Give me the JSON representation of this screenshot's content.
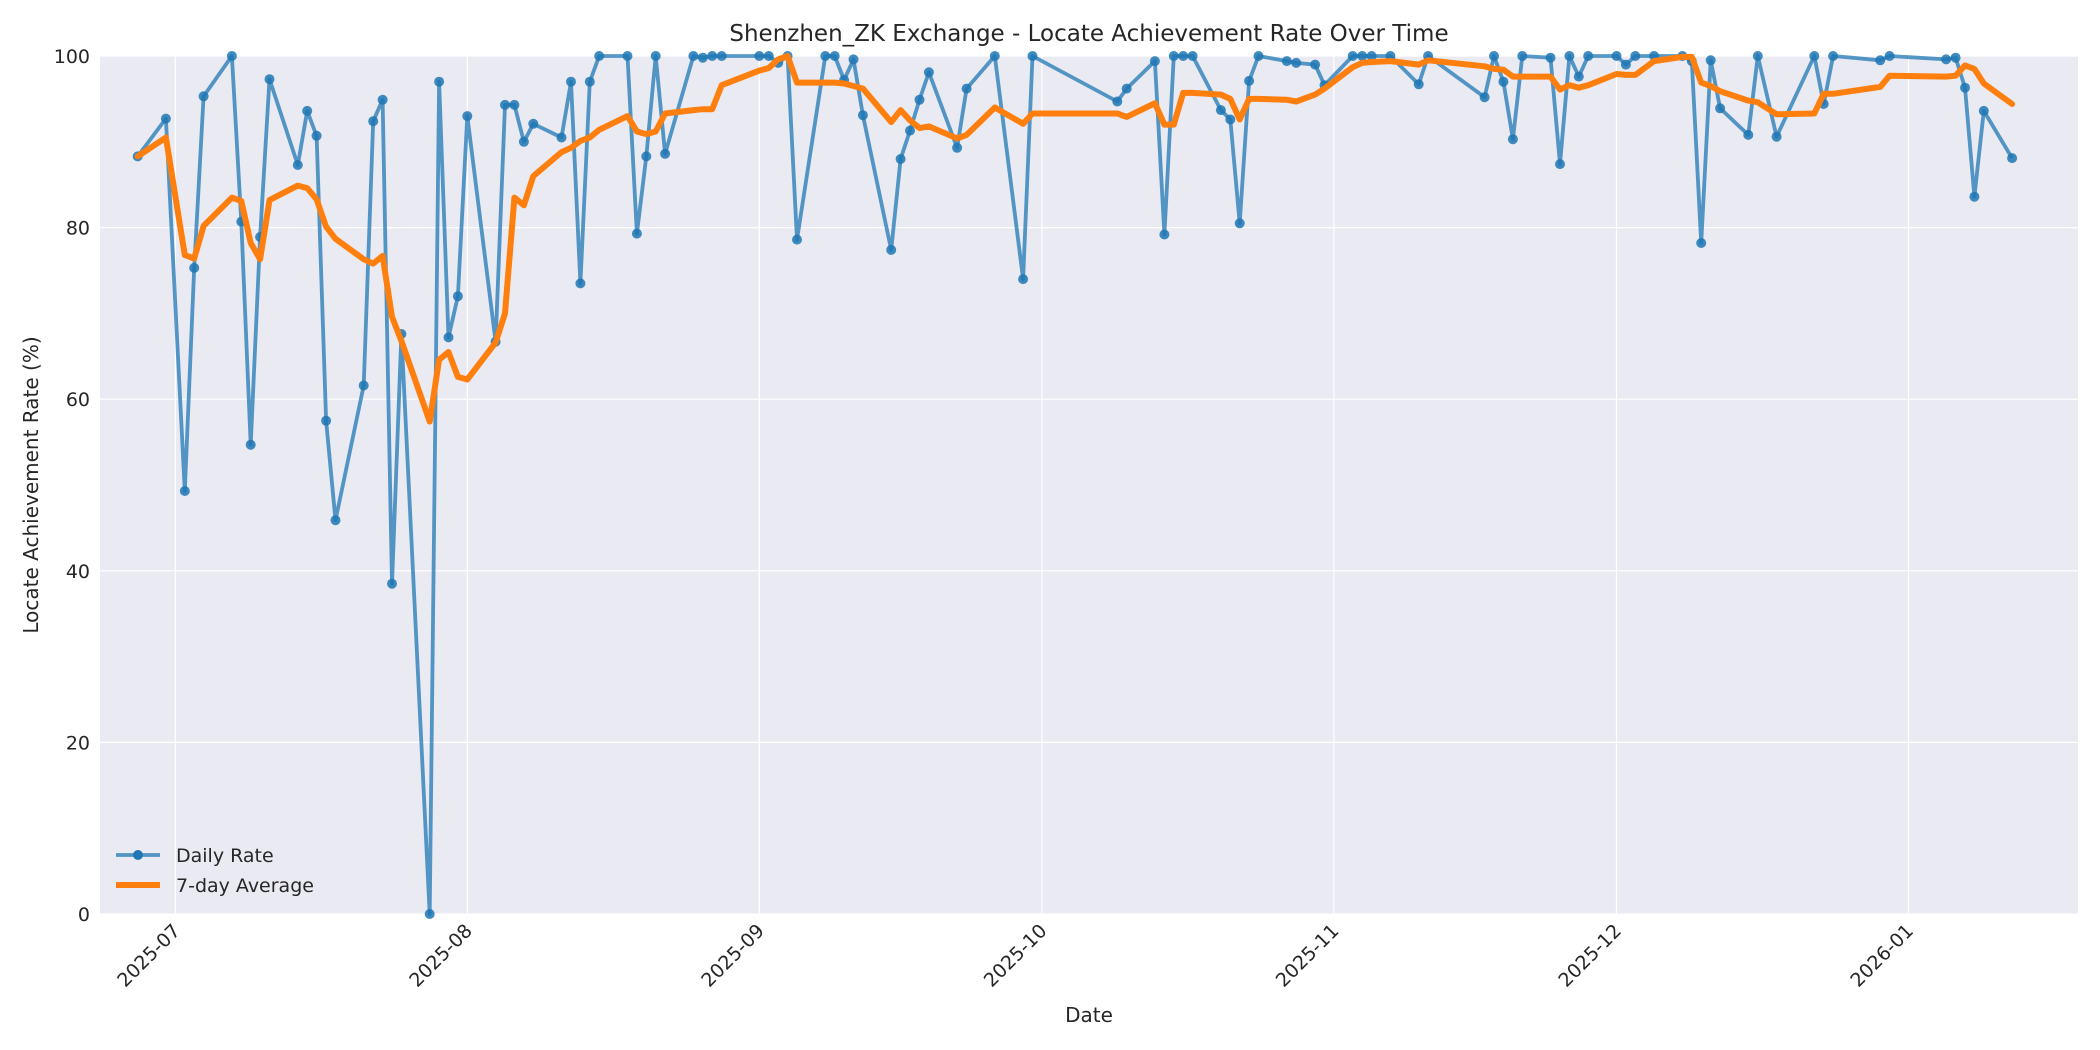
{
  "chart_data": {
    "type": "line",
    "title": "Shenzhen_ZK Exchange - Locate Achievement Rate Over Time",
    "xlabel": "Date",
    "ylabel": "Locate Achievement Rate (%)",
    "xlim": [
      "2025-06-23",
      "2026-01-19"
    ],
    "ylim": [
      0,
      100
    ],
    "x_ticks": [
      "2025-07",
      "2025-08",
      "2025-09",
      "2025-10",
      "2025-11",
      "2025-12",
      "2026-01"
    ],
    "y_ticks": [
      0,
      20,
      40,
      60,
      80,
      100
    ],
    "grid": true,
    "legend": "lower-left",
    "colors": {
      "daily": "#1f77b4",
      "average": "#ff7f0e",
      "plot_bg": "#eaeaf2",
      "grid": "#ffffff"
    },
    "series": [
      {
        "name": "Daily Rate",
        "marker": "circle",
        "points": [
          [
            "2025-06-27",
            88.3
          ],
          [
            "2025-06-30",
            92.7
          ],
          [
            "2025-07-02",
            49.3
          ],
          [
            "2025-07-03",
            75.3
          ],
          [
            "2025-07-04",
            95.3
          ],
          [
            "2025-07-07",
            100.0
          ],
          [
            "2025-07-08",
            80.7
          ],
          [
            "2025-07-09",
            54.7
          ],
          [
            "2025-07-10",
            78.9
          ],
          [
            "2025-07-11",
            97.3
          ],
          [
            "2025-07-14",
            87.3
          ],
          [
            "2025-07-15",
            93.6
          ],
          [
            "2025-07-16",
            90.7
          ],
          [
            "2025-07-17",
            57.5
          ],
          [
            "2025-07-18",
            45.9
          ],
          [
            "2025-07-21",
            61.6
          ],
          [
            "2025-07-22",
            92.4
          ],
          [
            "2025-07-23",
            94.9
          ],
          [
            "2025-07-24",
            38.5
          ],
          [
            "2025-07-25",
            67.6
          ],
          [
            "2025-07-28",
            0.0
          ],
          [
            "2025-07-29",
            97.0
          ],
          [
            "2025-07-30",
            67.2
          ],
          [
            "2025-07-31",
            72.0
          ],
          [
            "2025-08-01",
            93.0
          ],
          [
            "2025-08-04",
            66.7
          ],
          [
            "2025-08-05",
            94.3
          ],
          [
            "2025-08-06",
            94.3
          ],
          [
            "2025-08-07",
            90.0
          ],
          [
            "2025-08-08",
            92.1
          ],
          [
            "2025-08-11",
            90.5
          ],
          [
            "2025-08-12",
            97.0
          ],
          [
            "2025-08-13",
            73.5
          ],
          [
            "2025-08-14",
            97.0
          ],
          [
            "2025-08-15",
            100.0
          ],
          [
            "2025-08-18",
            100.0
          ],
          [
            "2025-08-19",
            79.3
          ],
          [
            "2025-08-20",
            88.3
          ],
          [
            "2025-08-21",
            100.0
          ],
          [
            "2025-08-22",
            88.6
          ],
          [
            "2025-08-25",
            100.0
          ],
          [
            "2025-08-26",
            99.8
          ],
          [
            "2025-08-27",
            100.0
          ],
          [
            "2025-08-28",
            100.0
          ],
          [
            "2025-09-01",
            100.0
          ],
          [
            "2025-09-02",
            100.0
          ],
          [
            "2025-09-03",
            99.2
          ],
          [
            "2025-09-04",
            100.0
          ],
          [
            "2025-09-05",
            78.6
          ],
          [
            "2025-09-08",
            100.0
          ],
          [
            "2025-09-09",
            100.0
          ],
          [
            "2025-09-10",
            97.2
          ],
          [
            "2025-09-11",
            99.6
          ],
          [
            "2025-09-12",
            93.1
          ],
          [
            "2025-09-15",
            77.4
          ],
          [
            "2025-09-16",
            88.0
          ],
          [
            "2025-09-17",
            91.3
          ],
          [
            "2025-09-18",
            94.9
          ],
          [
            "2025-09-19",
            98.1
          ],
          [
            "2025-09-22",
            89.3
          ],
          [
            "2025-09-23",
            96.2
          ],
          [
            "2025-09-26",
            100.0
          ],
          [
            "2025-09-29",
            74.0
          ],
          [
            "2025-09-30",
            100.0
          ],
          [
            "2025-10-09",
            94.7
          ],
          [
            "2025-10-10",
            96.2
          ],
          [
            "2025-10-13",
            99.4
          ],
          [
            "2025-10-14",
            79.2
          ],
          [
            "2025-10-15",
            100.0
          ],
          [
            "2025-10-16",
            100.0
          ],
          [
            "2025-10-17",
            100.0
          ],
          [
            "2025-10-20",
            93.7
          ],
          [
            "2025-10-21",
            92.6
          ],
          [
            "2025-10-22",
            80.5
          ],
          [
            "2025-10-23",
            97.1
          ],
          [
            "2025-10-24",
            100.0
          ],
          [
            "2025-10-27",
            99.4
          ],
          [
            "2025-10-28",
            99.2
          ],
          [
            "2025-10-30",
            99.0
          ],
          [
            "2025-10-31",
            96.6
          ],
          [
            "2025-11-03",
            100.0
          ],
          [
            "2025-11-04",
            100.0
          ],
          [
            "2025-11-05",
            100.0
          ],
          [
            "2025-11-07",
            100.0
          ],
          [
            "2025-11-10",
            96.7
          ],
          [
            "2025-11-11",
            100.0
          ],
          [
            "2025-11-17",
            95.2
          ],
          [
            "2025-11-18",
            100.0
          ],
          [
            "2025-11-19",
            97.0
          ],
          [
            "2025-11-20",
            90.3
          ],
          [
            "2025-11-21",
            100.0
          ],
          [
            "2025-11-24",
            99.8
          ],
          [
            "2025-11-25",
            87.4
          ],
          [
            "2025-11-26",
            100.0
          ],
          [
            "2025-11-27",
            97.6
          ],
          [
            "2025-11-28",
            100.0
          ],
          [
            "2025-12-01",
            100.0
          ],
          [
            "2025-12-02",
            99.0
          ],
          [
            "2025-12-03",
            100.0
          ],
          [
            "2025-12-05",
            100.0
          ],
          [
            "2025-12-08",
            100.0
          ],
          [
            "2025-12-09",
            99.4
          ],
          [
            "2025-12-10",
            78.2
          ],
          [
            "2025-12-11",
            99.5
          ],
          [
            "2025-12-12",
            93.9
          ],
          [
            "2025-12-15",
            90.8
          ],
          [
            "2025-12-16",
            100.0
          ],
          [
            "2025-12-18",
            90.6
          ],
          [
            "2025-12-22",
            100.0
          ],
          [
            "2025-12-23",
            94.4
          ],
          [
            "2025-12-24",
            100.0
          ],
          [
            "2025-12-29",
            99.5
          ],
          [
            "2025-12-30",
            100.0
          ],
          [
            "2026-01-05",
            99.6
          ],
          [
            "2026-01-06",
            99.8
          ],
          [
            "2026-01-07",
            96.3
          ],
          [
            "2026-01-08",
            83.6
          ],
          [
            "2026-01-09",
            93.6
          ],
          [
            "2026-01-12",
            88.1
          ]
        ]
      },
      {
        "name": "7-day Average",
        "marker": "none",
        "points": [
          [
            "2025-06-27",
            88.3
          ],
          [
            "2025-06-30",
            90.5
          ],
          [
            "2025-07-02",
            76.8
          ],
          [
            "2025-07-03",
            76.4
          ],
          [
            "2025-07-04",
            80.2
          ],
          [
            "2025-07-07",
            83.5
          ],
          [
            "2025-07-08",
            83.1
          ],
          [
            "2025-07-09",
            78.2
          ],
          [
            "2025-07-10",
            76.3
          ],
          [
            "2025-07-11",
            83.2
          ],
          [
            "2025-07-14",
            84.9
          ],
          [
            "2025-07-15",
            84.6
          ],
          [
            "2025-07-16",
            83.3
          ],
          [
            "2025-07-17",
            80.1
          ],
          [
            "2025-07-18",
            78.7
          ],
          [
            "2025-07-21",
            76.3
          ],
          [
            "2025-07-22",
            75.8
          ],
          [
            "2025-07-23",
            76.7
          ],
          [
            "2025-07-24",
            69.6
          ],
          [
            "2025-07-25",
            66.8
          ],
          [
            "2025-07-28",
            57.4
          ],
          [
            "2025-07-29",
            64.6
          ],
          [
            "2025-07-30",
            65.5
          ],
          [
            "2025-07-31",
            62.6
          ],
          [
            "2025-08-01",
            62.3
          ],
          [
            "2025-08-04",
            66.6
          ],
          [
            "2025-08-05",
            70.0
          ],
          [
            "2025-08-06",
            83.5
          ],
          [
            "2025-08-07",
            82.6
          ],
          [
            "2025-08-08",
            86.0
          ],
          [
            "2025-08-11",
            88.8
          ],
          [
            "2025-08-12",
            89.3
          ],
          [
            "2025-08-13",
            90.1
          ],
          [
            "2025-08-14",
            90.5
          ],
          [
            "2025-08-15",
            91.4
          ],
          [
            "2025-08-18",
            93.0
          ],
          [
            "2025-08-19",
            91.2
          ],
          [
            "2025-08-20",
            90.9
          ],
          [
            "2025-08-21",
            91.2
          ],
          [
            "2025-08-22",
            93.3
          ],
          [
            "2025-08-25",
            93.7
          ],
          [
            "2025-08-26",
            93.8
          ],
          [
            "2025-08-27",
            93.8
          ],
          [
            "2025-08-28",
            96.6
          ],
          [
            "2025-09-01",
            98.3
          ],
          [
            "2025-09-02",
            98.6
          ],
          [
            "2025-09-03",
            99.6
          ],
          [
            "2025-09-04",
            100.0
          ],
          [
            "2025-09-05",
            96.9
          ],
          [
            "2025-09-08",
            96.9
          ],
          [
            "2025-09-09",
            96.9
          ],
          [
            "2025-09-10",
            96.8
          ],
          [
            "2025-09-11",
            96.5
          ],
          [
            "2025-09-12",
            96.2
          ],
          [
            "2025-09-15",
            92.3
          ],
          [
            "2025-09-16",
            93.7
          ],
          [
            "2025-09-17",
            92.5
          ],
          [
            "2025-09-18",
            91.6
          ],
          [
            "2025-09-19",
            91.8
          ],
          [
            "2025-09-22",
            90.4
          ],
          [
            "2025-09-23",
            90.8
          ],
          [
            "2025-09-26",
            94.0
          ],
          [
            "2025-09-29",
            92.1
          ],
          [
            "2025-09-30",
            93.3
          ],
          [
            "2025-10-09",
            93.3
          ],
          [
            "2025-10-10",
            92.9
          ],
          [
            "2025-10-13",
            94.5
          ],
          [
            "2025-10-14",
            92.0
          ],
          [
            "2025-10-15",
            92.0
          ],
          [
            "2025-10-16",
            95.7
          ],
          [
            "2025-10-17",
            95.7
          ],
          [
            "2025-10-20",
            95.5
          ],
          [
            "2025-10-21",
            95.0
          ],
          [
            "2025-10-22",
            92.6
          ],
          [
            "2025-10-23",
            95.0
          ],
          [
            "2025-10-24",
            95.0
          ],
          [
            "2025-10-27",
            94.9
          ],
          [
            "2025-10-28",
            94.7
          ],
          [
            "2025-10-30",
            95.5
          ],
          [
            "2025-10-31",
            96.2
          ],
          [
            "2025-11-03",
            98.7
          ],
          [
            "2025-11-04",
            99.2
          ],
          [
            "2025-11-05",
            99.3
          ],
          [
            "2025-11-07",
            99.4
          ],
          [
            "2025-11-10",
            99.0
          ],
          [
            "2025-11-11",
            99.5
          ],
          [
            "2025-11-17",
            98.8
          ],
          [
            "2025-11-18",
            98.5
          ],
          [
            "2025-11-19",
            98.4
          ],
          [
            "2025-11-20",
            97.6
          ],
          [
            "2025-11-21",
            97.6
          ],
          [
            "2025-11-24",
            97.6
          ],
          [
            "2025-11-25",
            96.1
          ],
          [
            "2025-11-26",
            96.6
          ],
          [
            "2025-11-27",
            96.3
          ],
          [
            "2025-11-28",
            96.6
          ],
          [
            "2025-12-01",
            97.9
          ],
          [
            "2025-12-02",
            97.8
          ],
          [
            "2025-12-03",
            97.8
          ],
          [
            "2025-12-05",
            99.4
          ],
          [
            "2025-12-08",
            99.9
          ],
          [
            "2025-12-09",
            99.9
          ],
          [
            "2025-12-10",
            96.9
          ],
          [
            "2025-12-11",
            96.5
          ],
          [
            "2025-12-12",
            95.9
          ],
          [
            "2025-12-15",
            94.8
          ],
          [
            "2025-12-16",
            94.6
          ],
          [
            "2025-12-18",
            93.2
          ],
          [
            "2025-12-22",
            93.3
          ],
          [
            "2025-12-23",
            95.6
          ],
          [
            "2025-12-24",
            95.6
          ],
          [
            "2025-12-29",
            96.4
          ],
          [
            "2025-12-30",
            97.7
          ],
          [
            "2026-01-05",
            97.6
          ],
          [
            "2026-01-06",
            97.7
          ],
          [
            "2026-01-07",
            98.9
          ],
          [
            "2026-01-08",
            98.5
          ],
          [
            "2026-01-09",
            96.8
          ],
          [
            "2026-01-12",
            94.4
          ]
        ]
      }
    ]
  }
}
